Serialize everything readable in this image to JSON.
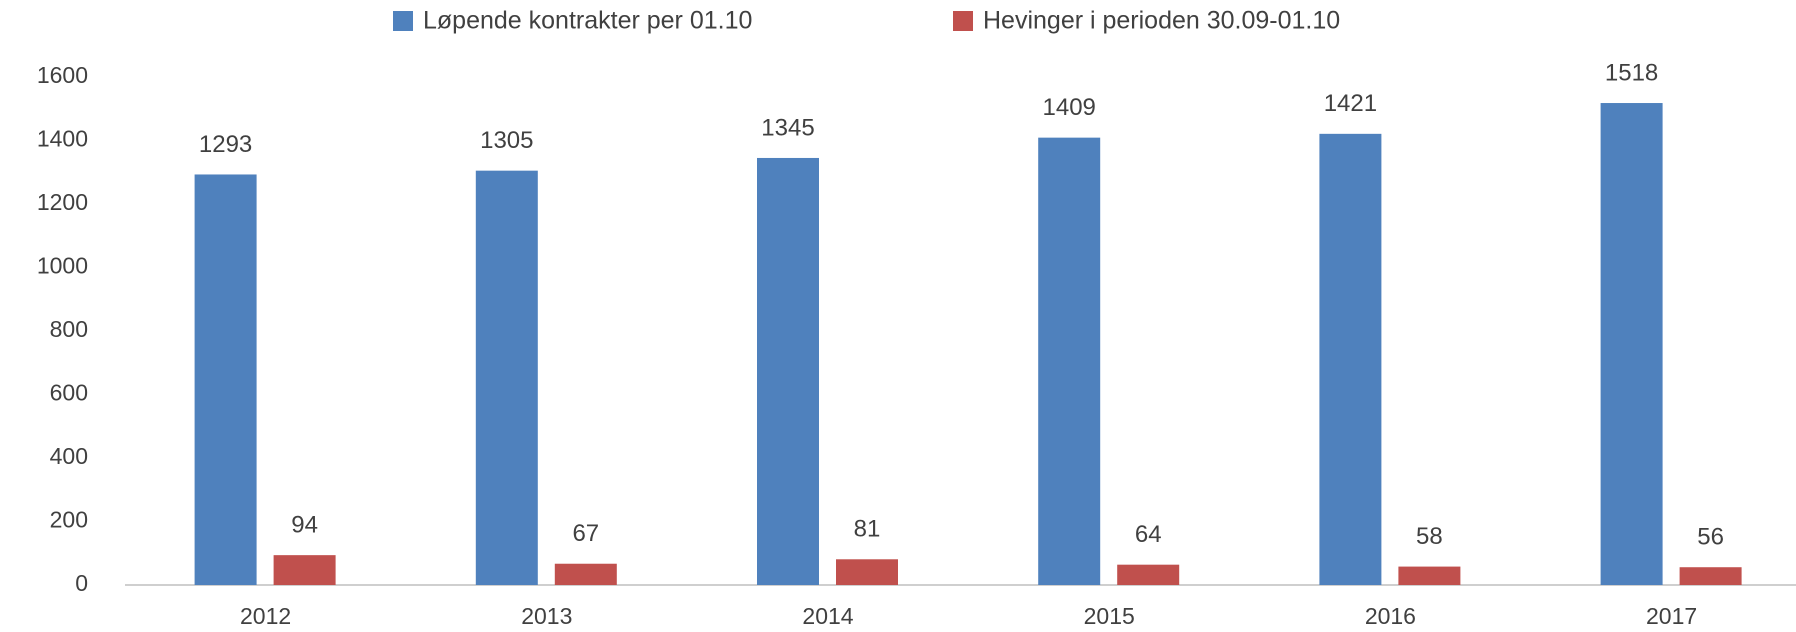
{
  "chart_data": {
    "type": "bar",
    "categories": [
      "2012",
      "2013",
      "2014",
      "2015",
      "2016",
      "2017"
    ],
    "series": [
      {
        "name": "Løpende kontrakter per 01.10",
        "color": "#4f81bd",
        "values": [
          1293,
          1305,
          1345,
          1409,
          1421,
          1518
        ]
      },
      {
        "name": "Hevinger i perioden 30.09-01.10",
        "color": "#c0504d",
        "values": [
          94,
          67,
          81,
          64,
          58,
          56
        ]
      }
    ],
    "ylim": [
      0,
      1600
    ],
    "yticks": [
      0,
      200,
      400,
      600,
      800,
      1000,
      1200,
      1400,
      1600
    ],
    "grid": false,
    "legend": "top"
  }
}
